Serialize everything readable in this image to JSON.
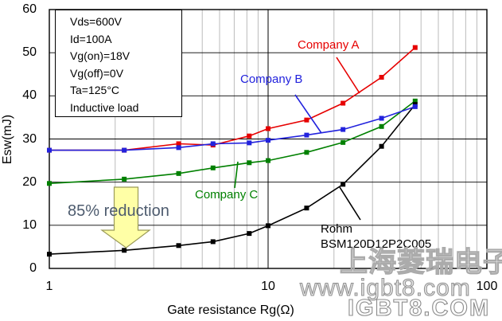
{
  "conditions": {
    "lines": [
      "Vds=600V",
      "Id=100A",
      "Vg(on)=18V",
      "Vg(off)=0V",
      "Ta=125°C",
      "Inductive load"
    ]
  },
  "chart_data": {
    "type": "line",
    "x_scale": "log",
    "title": "",
    "xlabel": "Gate resistance Rg(Ω)",
    "ylabel": "Esw(mJ)",
    "xlim": [
      1,
      100
    ],
    "ylim": [
      0,
      60
    ],
    "xticks": [
      1,
      10,
      100
    ],
    "yticks": [
      0,
      10,
      20,
      30,
      40,
      50,
      60
    ],
    "grid": {
      "horizontal_major": true,
      "vertical_log_minor": true,
      "minor_color": "#bbbbbb"
    },
    "legend_position": "inline-labels-with-leader-lines",
    "x": [
      1,
      2.2,
      3.9,
      5.6,
      8.2,
      10,
      15,
      22,
      33,
      47
    ],
    "series": [
      {
        "name": "Company A",
        "color": "#e60000",
        "values": [
          27.4,
          27.4,
          28.9,
          28.6,
          30.7,
          32.4,
          34.4,
          38.3,
          44.3,
          51.2
        ]
      },
      {
        "name": "Company C",
        "color": "#008000",
        "values": [
          19.7,
          20.7,
          22.0,
          23.3,
          24.5,
          25.0,
          26.9,
          29.2,
          32.9,
          38.8
        ]
      },
      {
        "name": "Rohm BSM120D12P2C005",
        "color": "#000000",
        "values": [
          3.3,
          4.2,
          5.3,
          6.2,
          8.1,
          9.9,
          14.0,
          19.5,
          28.3,
          38.0
        ]
      },
      {
        "name": "Company B",
        "color": "#2222dd",
        "values": [
          27.4,
          27.4,
          28.0,
          28.9,
          29.1,
          29.7,
          30.9,
          32.2,
          34.8,
          37.5
        ]
      }
    ]
  },
  "labels": {
    "rohm_line1": "Rohm",
    "rohm_line2": "BSM120D12P2C005"
  },
  "annotation": {
    "text": "85% reduction"
  },
  "watermarks": {
    "cn": "上海菱瑞电子",
    "url": "www.igbt8.com",
    "brand": "IGBT8.COM"
  }
}
